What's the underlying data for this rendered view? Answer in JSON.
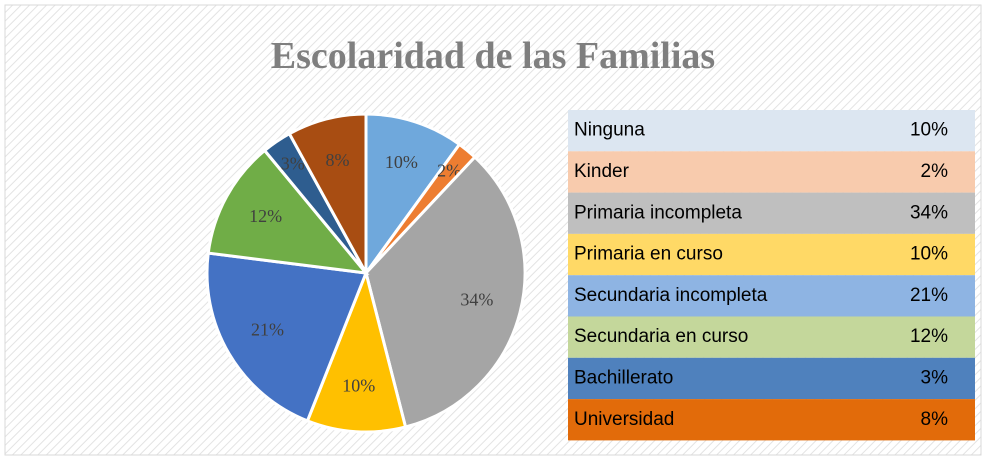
{
  "chart_data": {
    "type": "pie",
    "title": "Escolaridad de las Familias",
    "categories": [
      "Ninguna",
      "Kinder",
      "Primaria incompleta",
      "Primaria en curso",
      "Secundaria incompleta",
      "Secundaria en curso",
      "Bachillerato",
      "Universidad"
    ],
    "values": [
      10,
      2,
      34,
      10,
      21,
      12,
      3,
      8
    ],
    "value_labels": [
      "10%",
      "2%",
      "34%",
      "10%",
      "21%",
      "12%",
      "3%",
      "8%"
    ],
    "colors": [
      "#6fa8dc",
      "#ed7d31",
      "#a5a5a5",
      "#ffc000",
      "#4472c4",
      "#70ad47",
      "#2e5d8f",
      "#a84d12"
    ]
  }
}
